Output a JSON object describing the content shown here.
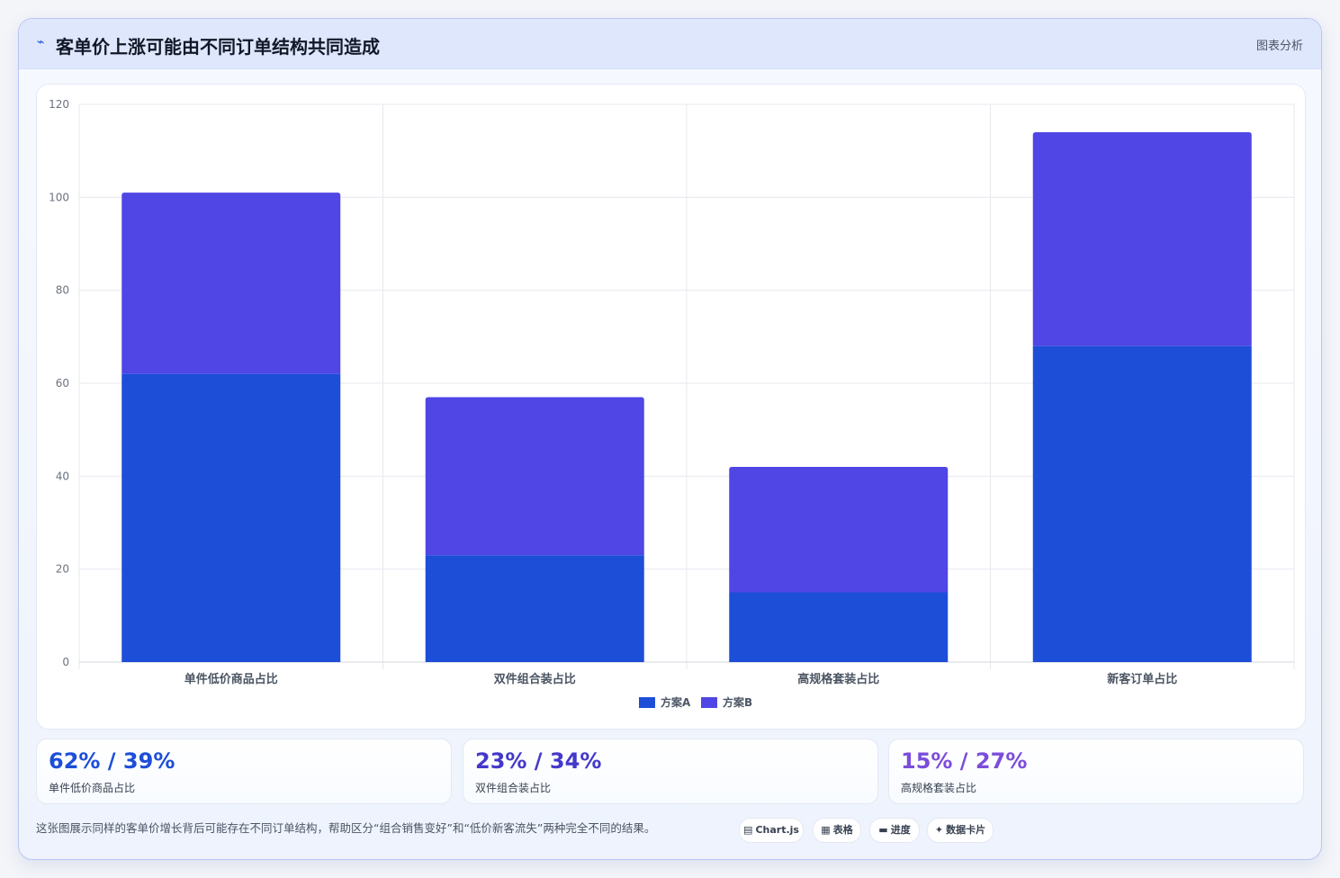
{
  "header": {
    "icon": "trend-line-icon",
    "title": "客单价上涨可能由不同订单结构共同造成",
    "badge": "图表分析"
  },
  "chart_data": {
    "type": "bar",
    "stacked": true,
    "categories": [
      "单件低价商品占比",
      "双件组合装占比",
      "高规格套装占比",
      "新客订单占比"
    ],
    "series": [
      {
        "name": "方案A",
        "color": "#1d4ed8",
        "values": [
          62,
          23,
          15,
          68
        ]
      },
      {
        "name": "方案B",
        "color": "#4f46e5",
        "values": [
          39,
          34,
          27,
          46
        ]
      }
    ],
    "yticks": [
      0,
      20,
      40,
      60,
      80,
      100,
      120
    ],
    "ylim": [
      0,
      120
    ],
    "grid": true,
    "legend_position": "bottom"
  },
  "stats": [
    {
      "value": "62% / 39%",
      "label": "单件低价商品占比",
      "color": "#1d4ed8"
    },
    {
      "value": "23% / 34%",
      "label": "双件组合装占比",
      "color": "#4338ca"
    },
    {
      "value": "15% / 27%",
      "label": "高规格套装占比",
      "color": "#7c4ddb"
    }
  ],
  "footer": {
    "note": "这张图展示同样的客单价增长背后可能存在不同订单结构，帮助区分“组合销售变好”和“低价新客流失”两种完全不同的结果。",
    "chips": [
      {
        "icon": "chart-icon",
        "label": "Chart.js"
      },
      {
        "icon": "table-icon",
        "label": "表格"
      },
      {
        "icon": "progress-icon",
        "label": "进度"
      },
      {
        "icon": "sparkle-icon",
        "label": "数据卡片"
      }
    ]
  }
}
